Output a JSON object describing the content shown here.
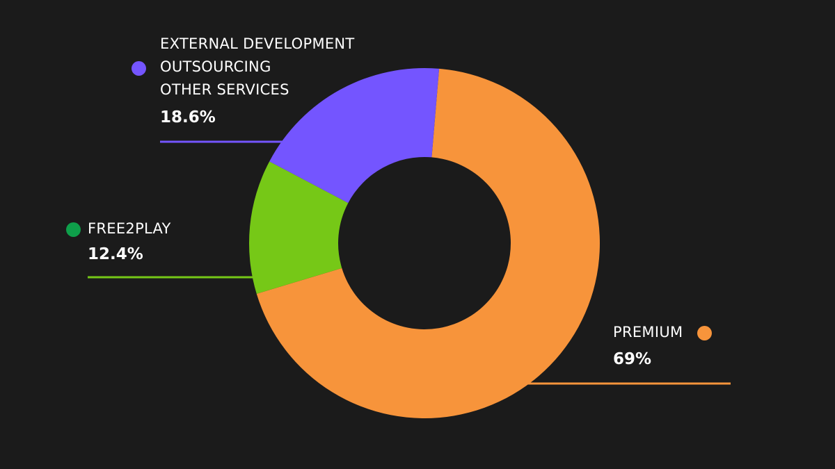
{
  "chart_data": {
    "type": "pie",
    "donut": true,
    "slices": [
      {
        "label_lines": [
          "PREMIUM"
        ],
        "value": 69,
        "value_label": "69%",
        "color": "#F7943B",
        "dot_color": "#F7943B"
      },
      {
        "label_lines": [
          "FREE2PLAY"
        ],
        "value": 12.4,
        "value_label": "12.4%",
        "color": "#76C817",
        "dot_color": "#0E9F4A"
      },
      {
        "label_lines": [
          "EXTERNAL DEVELOPMENT",
          "OUTSOURCING",
          "OTHER SERVICES"
        ],
        "value": 18.6,
        "value_label": "18.6%",
        "color": "#7455FF",
        "dot_color": "#7455FF"
      }
    ],
    "background": "#1b1b1b"
  }
}
